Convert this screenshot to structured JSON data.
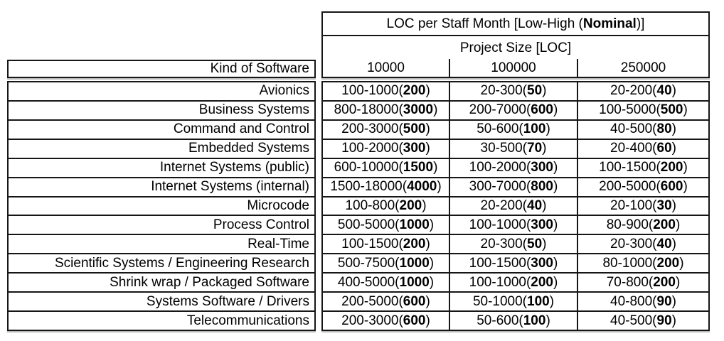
{
  "figure": {
    "header": {
      "title_pre": "LOC per Staff Month [Low-High (",
      "title_bold": "Nominal",
      "title_post": ")]",
      "subtitle": "Project Size [LOC]",
      "row_header": "Kind of Software",
      "columns": [
        "10000",
        "100000",
        "250000"
      ]
    },
    "format": {
      "open": "(",
      "close": ")"
    },
    "rows": [
      {
        "label": "Avionics",
        "cells": [
          {
            "range": "100-1000",
            "nominal": "200"
          },
          {
            "range": "20-300",
            "nominal": "50"
          },
          {
            "range": "20-200",
            "nominal": "40"
          }
        ]
      },
      {
        "label": "Business Systems",
        "cells": [
          {
            "range": "800-18000",
            "nominal": "3000"
          },
          {
            "range": "200-7000",
            "nominal": "600"
          },
          {
            "range": "100-5000",
            "nominal": "500"
          }
        ]
      },
      {
        "label": "Command and Control",
        "cells": [
          {
            "range": "200-3000",
            "nominal": "500"
          },
          {
            "range": "50-600",
            "nominal": "100"
          },
          {
            "range": "40-500",
            "nominal": "80"
          }
        ]
      },
      {
        "label": "Embedded Systems",
        "cells": [
          {
            "range": "100-2000",
            "nominal": "300"
          },
          {
            "range": "30-500",
            "nominal": "70"
          },
          {
            "range": "20-400",
            "nominal": "60"
          }
        ]
      },
      {
        "label": "Internet Systems (public)",
        "cells": [
          {
            "range": "600-10000",
            "nominal": "1500"
          },
          {
            "range": "100-2000",
            "nominal": "300"
          },
          {
            "range": "100-1500",
            "nominal": "200"
          }
        ]
      },
      {
        "label": "Internet Systems (internal)",
        "cells": [
          {
            "range": "1500-18000",
            "nominal": "4000"
          },
          {
            "range": "300-7000",
            "nominal": "800"
          },
          {
            "range": "200-5000",
            "nominal": "600"
          }
        ]
      },
      {
        "label": "Microcode",
        "cells": [
          {
            "range": "100-800",
            "nominal": "200"
          },
          {
            "range": "20-200",
            "nominal": "40"
          },
          {
            "range": "20-100",
            "nominal": "30"
          }
        ]
      },
      {
        "label": "Process Control",
        "cells": [
          {
            "range": "500-5000",
            "nominal": "1000"
          },
          {
            "range": "100-1000",
            "nominal": "300"
          },
          {
            "range": "80-900",
            "nominal": "200"
          }
        ]
      },
      {
        "label": "Real-Time",
        "cells": [
          {
            "range": "100-1500",
            "nominal": "200"
          },
          {
            "range": "20-300",
            "nominal": "50"
          },
          {
            "range": "20-300",
            "nominal": "40"
          }
        ]
      },
      {
        "label": "Scientific Systems / Engineering Research",
        "cells": [
          {
            "range": "500-7500",
            "nominal": "1000"
          },
          {
            "range": "100-1500",
            "nominal": "300"
          },
          {
            "range": "80-1000",
            "nominal": "200"
          }
        ]
      },
      {
        "label": "Shrink wrap / Packaged Software",
        "cells": [
          {
            "range": "400-5000",
            "nominal": "1000"
          },
          {
            "range": "100-1000",
            "nominal": "200"
          },
          {
            "range": "70-800",
            "nominal": "200"
          }
        ]
      },
      {
        "label": "Systems Software / Drivers",
        "cells": [
          {
            "range": "200-5000",
            "nominal": "600"
          },
          {
            "range": "50-1000",
            "nominal": "100"
          },
          {
            "range": "40-800",
            "nominal": "90"
          }
        ]
      },
      {
        "label": "Telecommunications",
        "cells": [
          {
            "range": "200-3000",
            "nominal": "600"
          },
          {
            "range": "50-600",
            "nominal": "100"
          },
          {
            "range": "40-500",
            "nominal": "90"
          }
        ]
      }
    ],
    "colors": {
      "border": "#161616",
      "text": "#000000",
      "background": "#ffffff"
    }
  }
}
